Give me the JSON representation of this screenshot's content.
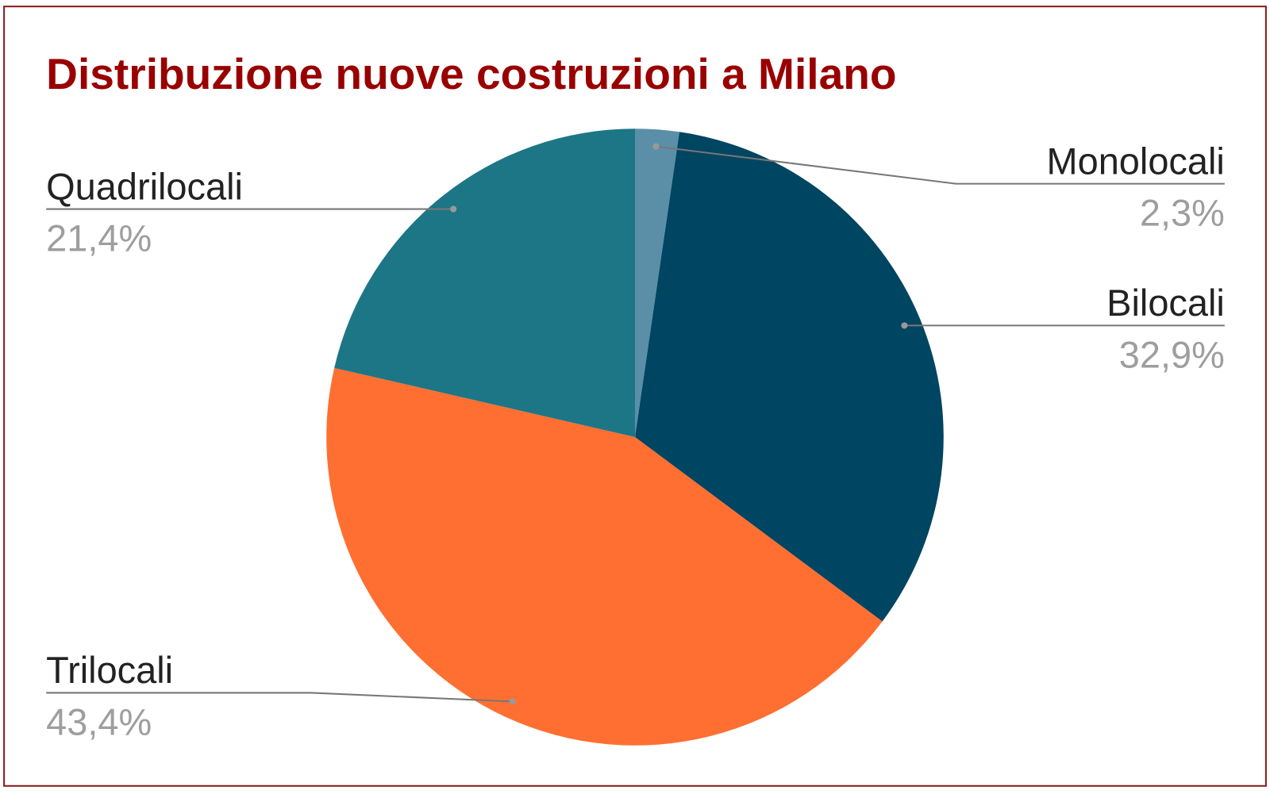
{
  "chart_data": {
    "type": "pie",
    "title": "Distribuzione nuove costruzioni a Milano",
    "categories": [
      "Monolocali",
      "Bilocali",
      "Trilocali",
      "Quadrilocali"
    ],
    "values": [
      2.3,
      32.9,
      43.4,
      21.4
    ],
    "value_labels": [
      "2,3%",
      "32,9%",
      "43,4%",
      "21,4%"
    ],
    "colors": [
      "#5b8fa8",
      "#004561",
      "#ff6f31",
      "#1c7685"
    ]
  }
}
